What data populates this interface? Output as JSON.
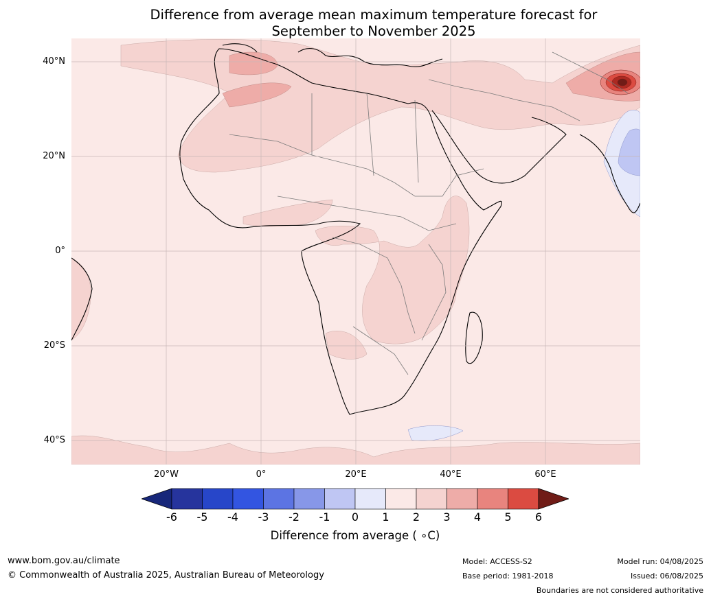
{
  "title": {
    "line1": "Difference from average mean maximum temperature forecast for",
    "line2": "September to November 2025"
  },
  "map": {
    "lat_labels": [
      {
        "label": "40°N",
        "deg": 40
      },
      {
        "label": "20°N",
        "deg": 20
      },
      {
        "label": "0°",
        "deg": 0
      },
      {
        "label": "20°S",
        "deg": -20
      },
      {
        "label": "40°S",
        "deg": -40
      }
    ],
    "lon_labels": [
      {
        "label": "20°W",
        "deg": -20
      },
      {
        "label": "0°",
        "deg": 0
      },
      {
        "label": "20°E",
        "deg": 20
      },
      {
        "label": "40°E",
        "deg": 40
      },
      {
        "label": "60°E",
        "deg": 60
      }
    ],
    "extent": {
      "lon": [
        -40,
        80
      ],
      "lat": [
        -45,
        45
      ]
    },
    "background_color": "#fbe9e7",
    "land_color": "#fcebe9"
  },
  "colorbar": {
    "ticks": [
      "-6",
      "-5",
      "-4",
      "-3",
      "-2",
      "-1",
      "0",
      "1",
      "2",
      "3",
      "4",
      "5",
      "6"
    ],
    "colors": [
      "#26349d",
      "#2746c9",
      "#3355e1",
      "#5c74e3",
      "#8797e8",
      "#bfc6f3",
      "#e6e9fa",
      "#fbe9e7",
      "#f5d3d0",
      "#eeaca8",
      "#e8847e",
      "#db4b41",
      "#ac2a22"
    ],
    "under_color": "#17277a",
    "over_color": "#701c17",
    "label": "Difference from average ( ∘C)"
  },
  "footer": {
    "website": "www.bom.gov.au/climate",
    "copyright": "© Commonwealth of Australia 2025, Australian Bureau of Meteorology",
    "model": "Model: ACCESS-S2",
    "base_period": "Base period: 1981-2018",
    "model_run": "Model run: 04/08/2025",
    "issued": "Issued: 06/08/2025",
    "disclaimer": "Boundaries are not considered authoritative"
  }
}
